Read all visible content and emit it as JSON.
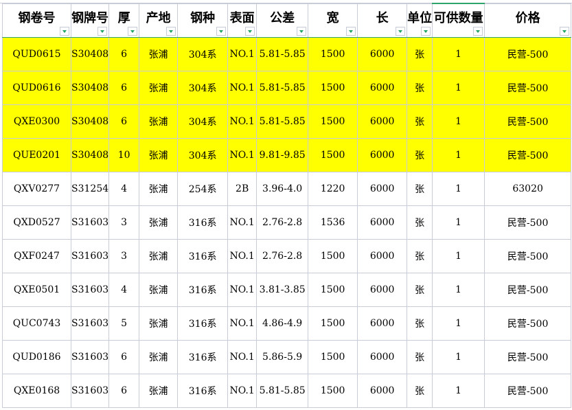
{
  "headers": [
    "钢卷号",
    "钢牌号",
    "厚",
    "产地",
    "钢种",
    "表面",
    "公差",
    "宽",
    "长",
    "单位",
    "可供数量",
    "价格"
  ],
  "highlight_color": "#ffff00",
  "rows": [
    {
      "highlight": true,
      "cells": [
        "QUD0615",
        "S30408",
        "6",
        "张浦",
        "304系",
        "NO.1",
        "5.81-5.85",
        "1500",
        "6000",
        "张",
        "1",
        "民营-500"
      ]
    },
    {
      "highlight": true,
      "cells": [
        "QUD0616",
        "S30408",
        "6",
        "张浦",
        "304系",
        "NO.1",
        "5.81-5.85",
        "1500",
        "6000",
        "张",
        "1",
        "民营-500"
      ]
    },
    {
      "highlight": true,
      "cells": [
        "QXE0300",
        "S30408",
        "6",
        "张浦",
        "304系",
        "NO.1",
        "5.81-5.85",
        "1500",
        "6000",
        "张",
        "1",
        "民营-500"
      ]
    },
    {
      "highlight": true,
      "cells": [
        "QUE0201",
        "S30408",
        "10",
        "张浦",
        "304系",
        "NO.1",
        "9.81-9.85",
        "1500",
        "6000",
        "张",
        "1",
        "民营-500"
      ]
    },
    {
      "highlight": false,
      "cells": [
        "QXV0277",
        "S31254",
        "4",
        "张浦",
        "254系",
        "2B",
        "3.96-4.0",
        "1220",
        "6000",
        "张",
        "1",
        "63020"
      ]
    },
    {
      "highlight": false,
      "cells": [
        "QXD0527",
        "S31603",
        "3",
        "张浦",
        "316系",
        "NO.1",
        "2.76-2.8",
        "1536",
        "6000",
        "张",
        "1",
        "民营-500"
      ]
    },
    {
      "highlight": false,
      "cells": [
        "QXF0247",
        "S31603",
        "3",
        "张浦",
        "316系",
        "NO.1",
        "2.76-2.8",
        "1500",
        "6000",
        "张",
        "1",
        "民营-500"
      ]
    },
    {
      "highlight": false,
      "cells": [
        "QXE0501",
        "S31603",
        "4",
        "张浦",
        "316系",
        "NO.1",
        "3.81-3.85",
        "1500",
        "6000",
        "张",
        "1",
        "民营-500"
      ]
    },
    {
      "highlight": false,
      "cells": [
        "QUC0743",
        "S31603",
        "5",
        "张浦",
        "316系",
        "NO.1",
        "4.86-4.9",
        "1500",
        "6000",
        "张",
        "1",
        "民营-500"
      ]
    },
    {
      "highlight": false,
      "cells": [
        "QUD0186",
        "S31603",
        "6",
        "张浦",
        "316系",
        "NO.1",
        "5.86-5.9",
        "1500",
        "6000",
        "张",
        "1",
        "民营-500"
      ]
    },
    {
      "highlight": false,
      "cells": [
        "QXE0168",
        "S31603",
        "6",
        "张浦",
        "316系",
        "NO.1",
        "5.81-5.85",
        "1500",
        "6000",
        "张",
        "1",
        "民营-500"
      ]
    }
  ]
}
